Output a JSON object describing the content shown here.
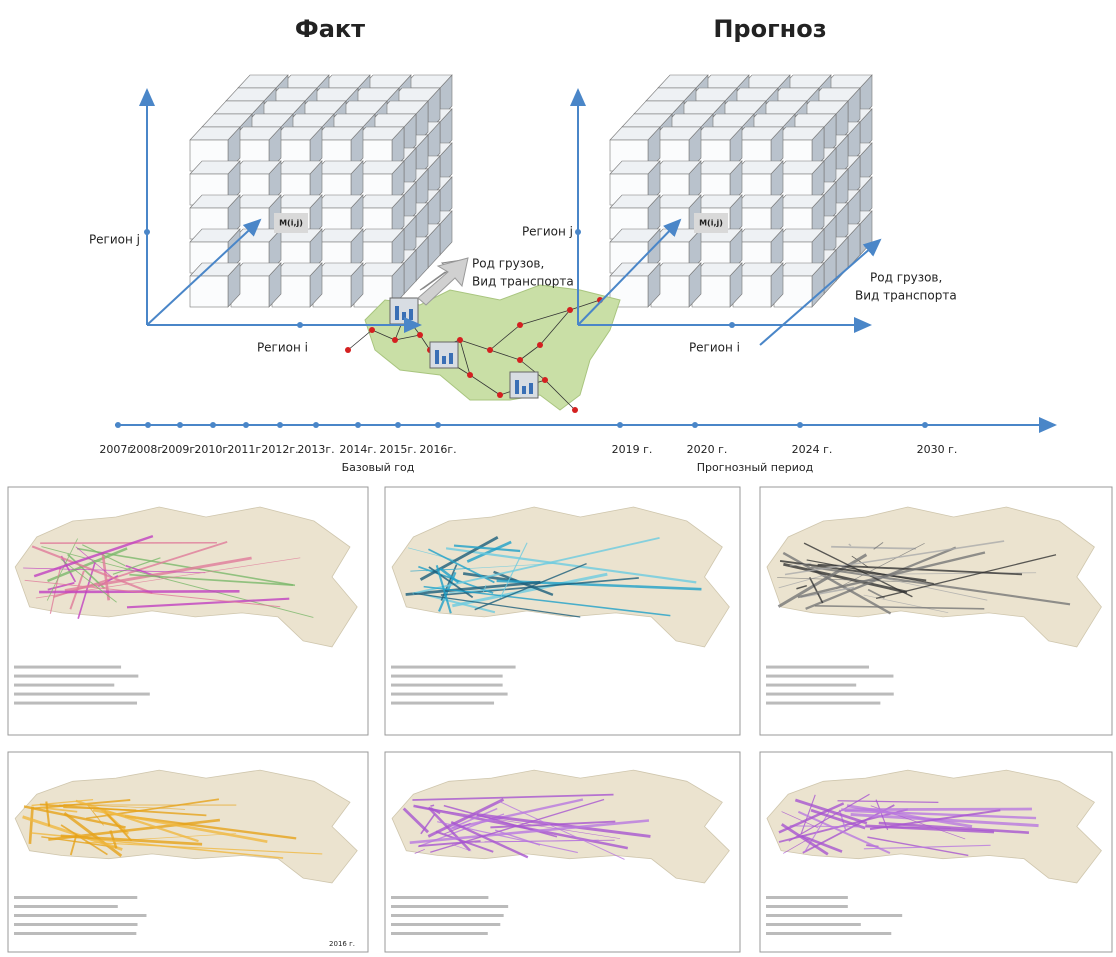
{
  "titles": {
    "fact": "Факт",
    "forecast": "Прогноз"
  },
  "fact_cube": {
    "region_j": "Регион j",
    "region_i": "Регион i",
    "cell": "M(i,j)",
    "depth_axis": [
      "Род грузов,",
      "Вид транспорта"
    ]
  },
  "forecast_cube": {
    "region_j": "Регион j",
    "region_i": "Регион i",
    "cell": "M(i,j)",
    "depth_axis": [
      "Род грузов,",
      "Вид транспорта"
    ]
  },
  "timeline": {
    "years": [
      "2007г.",
      "2008г.",
      "2009г.",
      "2010г.",
      "2011г.",
      "2012г.",
      "2013г.",
      "2014г.",
      "2015г.",
      "2016г.",
      "2019 г.",
      "2020 г.",
      "2024 г.",
      "2030 г."
    ],
    "base_label": "Базовый год",
    "forecast_label": "Прогнозный период"
  },
  "maps": {
    "panel_4_year": "2016 г."
  }
}
